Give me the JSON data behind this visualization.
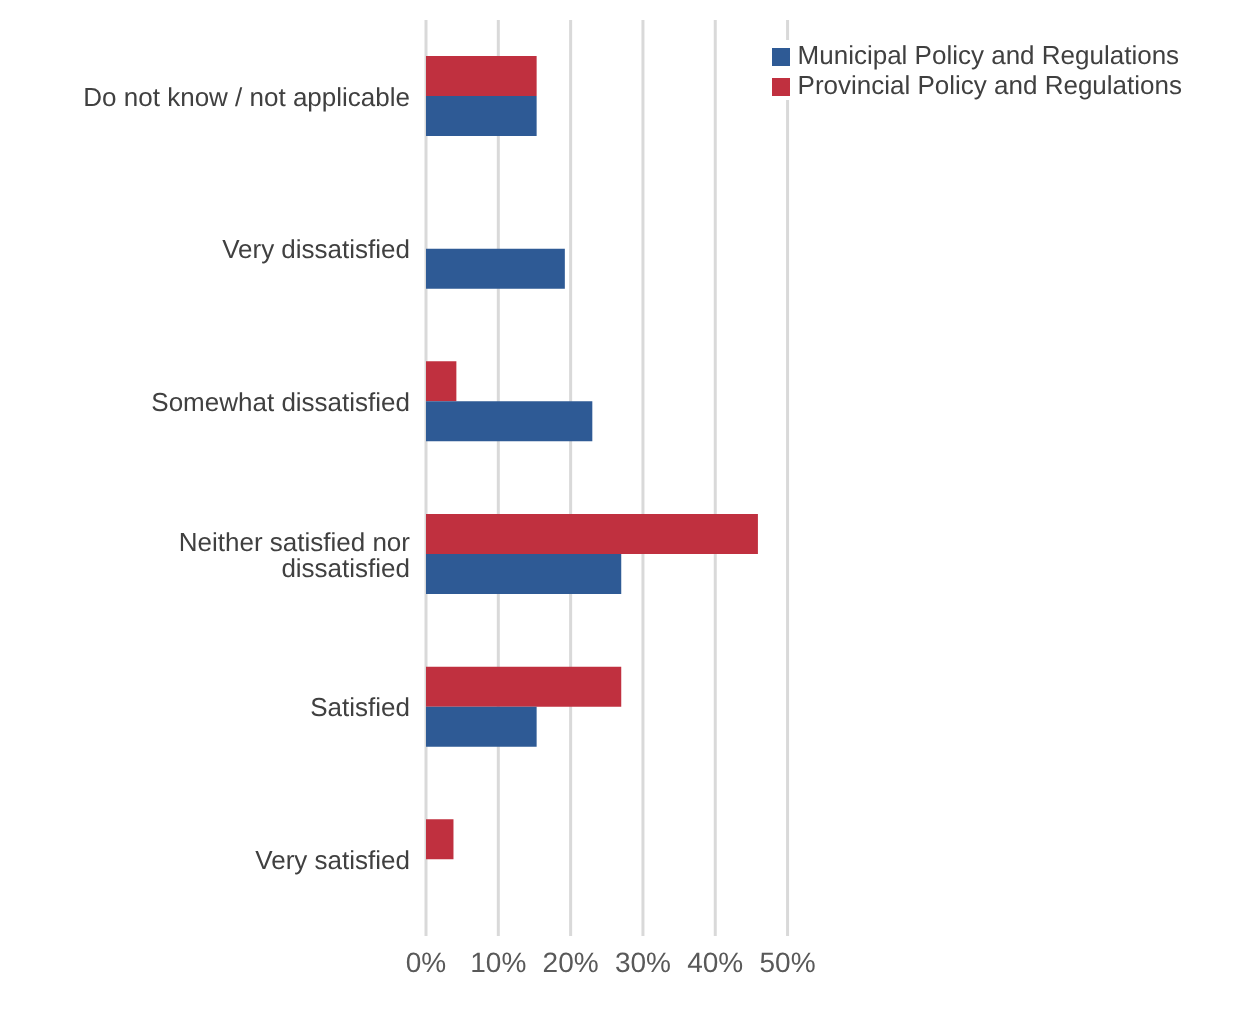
{
  "chart_data": {
    "type": "bar",
    "orientation": "horizontal",
    "categories": [
      "Do not know / not applicable",
      "Very dissatisfied",
      "Somewhat dissatisfied",
      "Neither satisfied nor dissatisfied",
      "Satisfied",
      "Very satisfied"
    ],
    "series": [
      {
        "name": "Provincial Policy and Regulations",
        "color": "#c0303f",
        "values": [
          15.3,
          null,
          4.2,
          45.9,
          27.0,
          3.8
        ]
      },
      {
        "name": "Municipal Policy and Regulations",
        "color": "#2e5a95",
        "values": [
          15.3,
          19.2,
          23.0,
          27.0,
          15.3,
          null
        ]
      }
    ],
    "xlim": [
      0,
      50
    ],
    "xticks": [
      {
        "value": 0,
        "label": "0%"
      },
      {
        "value": 10,
        "label": "10%"
      },
      {
        "value": 20,
        "label": "20%"
      },
      {
        "value": 30,
        "label": "30%"
      },
      {
        "value": 40,
        "label": "40%"
      },
      {
        "value": 50,
        "label": "50%"
      }
    ],
    "grid": "x",
    "legend": "top right"
  }
}
